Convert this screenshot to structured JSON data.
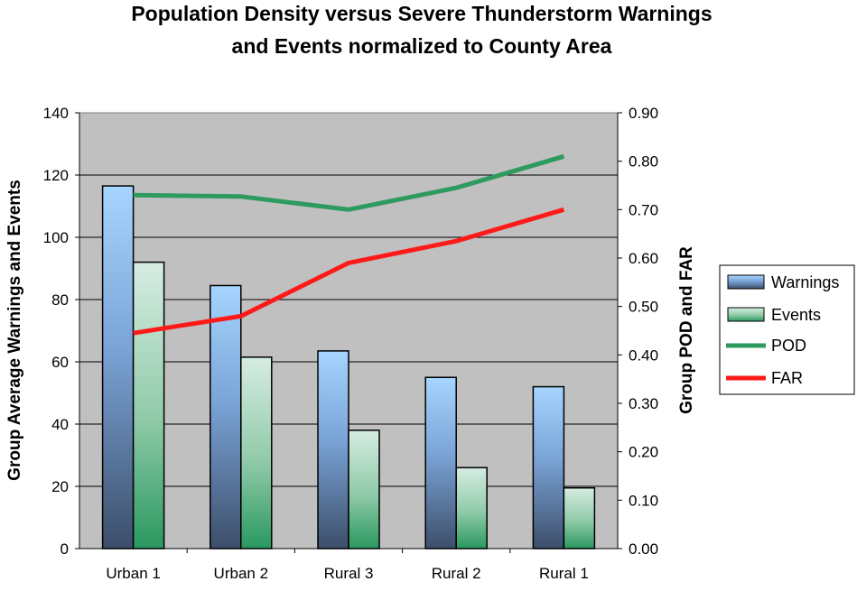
{
  "chart_data": {
    "type": "bar",
    "title": "Population Density versus Severe Thunderstorm Warnings",
    "subtitle": "and Events normalized to County Area",
    "categories": [
      "Urban 1",
      "Urban 2",
      "Rural 3",
      "Rural 2",
      "Rural 1"
    ],
    "series": [
      {
        "name": "Warnings",
        "kind": "bar",
        "axis": "left",
        "values": [
          116.5,
          84.5,
          63.5,
          55,
          52
        ]
      },
      {
        "name": "Events",
        "kind": "bar",
        "axis": "left",
        "values": [
          92,
          61.5,
          38,
          26,
          19.5
        ]
      },
      {
        "name": "POD",
        "kind": "line",
        "axis": "right",
        "color": "#2e9a5e",
        "values": [
          0.73,
          0.727,
          0.7,
          0.745,
          0.81
        ]
      },
      {
        "name": "FAR",
        "kind": "line",
        "axis": "right",
        "color": "#ff1a1a",
        "values": [
          0.445,
          0.48,
          0.59,
          0.635,
          0.7
        ]
      }
    ],
    "ylabel": "Group Average Warnings and Events",
    "y2label": "Group POD and FAR",
    "ylim": [
      0,
      140
    ],
    "y2lim": [
      0,
      0.9
    ],
    "yticks": [
      "0",
      "20",
      "40",
      "60",
      "80",
      "100",
      "120",
      "140"
    ],
    "y2ticks": [
      "0.00",
      "0.10",
      "0.20",
      "0.30",
      "0.40",
      "0.50",
      "0.60",
      "0.70",
      "0.80",
      "0.90"
    ],
    "grid": true,
    "legend_position": "right",
    "plot_background": "#c0c0c0"
  }
}
